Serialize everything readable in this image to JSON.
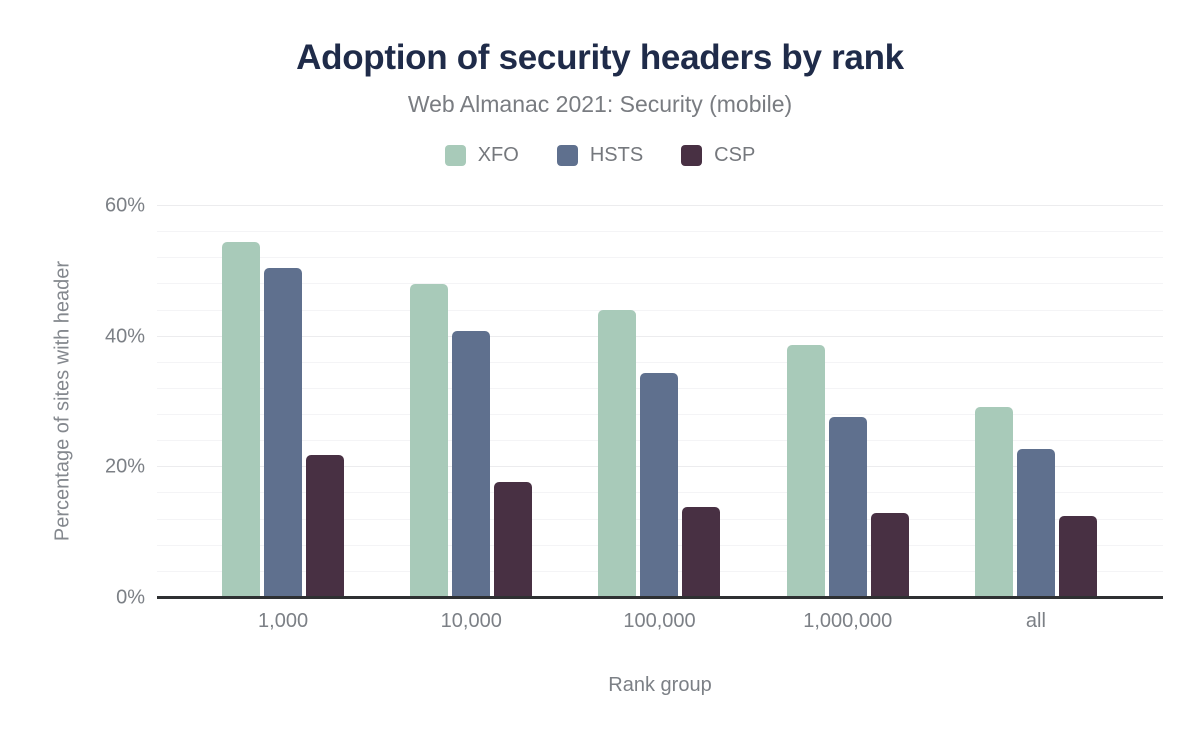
{
  "header": {
    "title": "Adoption of security headers by rank",
    "subtitle": "Web Almanac 2021: Security (mobile)"
  },
  "chart_data": {
    "type": "bar",
    "title": "Adoption of security headers by rank",
    "subtitle": "Web Almanac 2021: Security (mobile)",
    "categories": [
      "1,000",
      "10,000",
      "100,000",
      "1,000,000",
      "all"
    ],
    "series": [
      {
        "name": "XFO",
        "color": "#a8cab9",
        "values": [
          54.5,
          48.1,
          44.1,
          38.7,
          29.3
        ]
      },
      {
        "name": "HSTS",
        "color": "#5f708e",
        "values": [
          50.5,
          40.9,
          34.5,
          27.7,
          22.8
        ]
      },
      {
        "name": "CSP",
        "color": "#483043",
        "values": [
          21.9,
          17.7,
          13.9,
          13.0,
          12.5
        ]
      }
    ],
    "xlabel": "Rank group",
    "ylabel": "Percentage of sites with header",
    "ylim": [
      0,
      60
    ],
    "yticks": [
      0,
      20,
      40,
      60
    ],
    "ytick_suffix": "%",
    "grid": {
      "minor_step": 4,
      "major_step": 20,
      "visible": true
    },
    "legend_position": "top"
  },
  "colors": {
    "title": "#1f2b49",
    "subtitle": "#797c81",
    "axis_labels": "#7c8086",
    "axis_line": "#2e3032",
    "gridline_minor": "#f4f4f6",
    "gridline_major": "#ececee",
    "background": "#ffffff"
  }
}
